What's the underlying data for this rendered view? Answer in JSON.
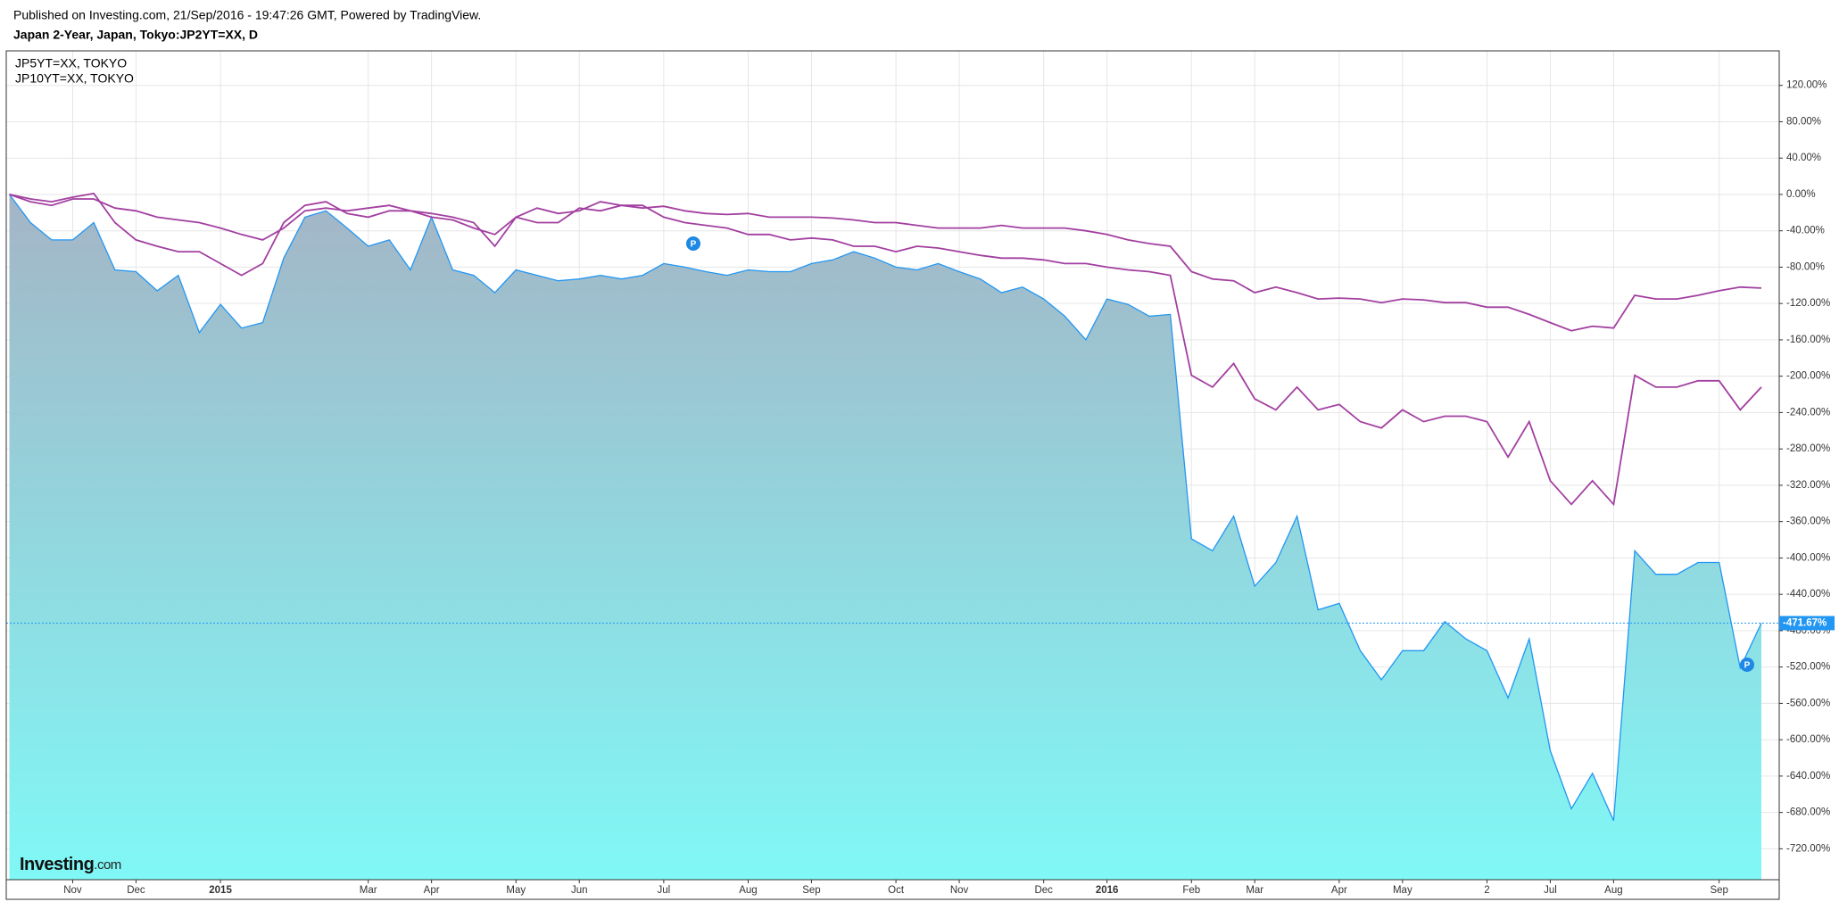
{
  "chart_data": {
    "type": "line",
    "title": "Published on Investing.com, 21/Sep/2016 - 19:47:26 GMT, Powered by TradingView.",
    "subtitle": "Japan 2-Year, Japan, Tokyo:JP2YT=XX, D",
    "categories": [
      null,
      null,
      null,
      "Nov",
      null,
      null,
      "Dec",
      null,
      null,
      null,
      "2015",
      null,
      null,
      null,
      null,
      null,
      null,
      "Mar",
      null,
      null,
      "Apr",
      null,
      null,
      null,
      "May",
      null,
      null,
      "Jun",
      null,
      null,
      null,
      "Jul",
      null,
      null,
      null,
      "Aug",
      null,
      null,
      "Sep",
      null,
      null,
      null,
      "Oct",
      null,
      null,
      "Nov",
      null,
      null,
      null,
      "Dec",
      null,
      null,
      "2016",
      null,
      null,
      null,
      "Feb",
      null,
      null,
      "Mar",
      null,
      null,
      null,
      "Apr",
      null,
      null,
      "May",
      null,
      null,
      null,
      "2",
      null,
      null,
      "Jul",
      null,
      null,
      "Aug",
      null,
      null,
      null,
      null,
      "Sep",
      null,
      null
    ],
    "series": [
      {
        "color": "#2196f3",
        "area": true,
        "values": [
          0,
          -31,
          -50,
          -50,
          -31,
          -83,
          -85,
          -106,
          -89,
          -152,
          -121,
          -147,
          -141,
          -70,
          -25,
          -18,
          -37,
          -57,
          -50,
          -83,
          -25,
          -83,
          -89,
          -108,
          -83,
          -89,
          -95,
          -93,
          -89,
          -93,
          -89,
          -76,
          -80,
          -85,
          -89,
          -83,
          -85,
          -85,
          -76,
          -72,
          -63,
          -70,
          -80,
          -83,
          -76,
          -85,
          -93,
          -108,
          -102,
          -115,
          -134,
          -160,
          -115,
          -121,
          -134,
          -132,
          -379,
          -392,
          -354,
          -431,
          -405,
          -354,
          -457,
          -450,
          -502,
          -534,
          -502,
          -502,
          -470,
          -489,
          -502,
          -554,
          -489,
          -612,
          -676,
          -637,
          -689,
          -392,
          -418,
          -418,
          -405,
          -405,
          -521,
          -471.67
        ]
      },
      {
        "name": "JP5YT=XX, TOKYO",
        "color": "#a23fa0",
        "values": [
          0,
          -5,
          -8,
          -3,
          1,
          -31,
          -50,
          -57,
          -63,
          -63,
          -76,
          -89,
          -76,
          -31,
          -12,
          -8,
          -21,
          -25,
          -18,
          -18,
          -21,
          -25,
          -31,
          -57,
          -25,
          -31,
          -31,
          -15,
          -18,
          -12,
          -12,
          -25,
          -31,
          -34,
          -37,
          -44,
          -44,
          -50,
          -48,
          -50,
          -57,
          -57,
          -63,
          -57,
          -59,
          -63,
          -67,
          -70,
          -70,
          -72,
          -76,
          -76,
          -80,
          -83,
          -85,
          -89,
          -199,
          -212,
          -186,
          -225,
          -237,
          -212,
          -237,
          -231,
          -250,
          -257,
          -237,
          -250,
          -244,
          -244,
          -250,
          -289,
          -250,
          -315,
          -341,
          -315,
          -341,
          -199,
          -212,
          -212,
          -205,
          -205,
          -237,
          -212
        ]
      },
      {
        "name": "JP10YT=XX, TOKYO",
        "color": "#a23fa0",
        "values": [
          0,
          -8,
          -12,
          -5,
          -5,
          -15,
          -18,
          -25,
          -28,
          -31,
          -37,
          -44,
          -50,
          -37,
          -18,
          -15,
          -18,
          -15,
          -12,
          -18,
          -25,
          -28,
          -37,
          -44,
          -25,
          -15,
          -21,
          -18,
          -8,
          -12,
          -15,
          -13,
          -18,
          -21,
          -22,
          -21,
          -25,
          -25,
          -25,
          -26,
          -28,
          -31,
          -31,
          -34,
          -37,
          -37,
          -37,
          -34,
          -37,
          -37,
          -37,
          -40,
          -44,
          -50,
          -54,
          -57,
          -85,
          -93,
          -95,
          -108,
          -102,
          -108,
          -115,
          -114,
          -115,
          -119,
          -115,
          -116,
          -119,
          -119,
          -124,
          -124,
          -132,
          -141,
          -150,
          -145,
          -147,
          -111,
          -115,
          -115,
          -111,
          -106,
          -102,
          -103
        ]
      }
    ],
    "ylim": [
      -754,
      158
    ],
    "yticks": [
      {
        "value": 120,
        "label": "120.00%"
      },
      {
        "value": 80,
        "label": "80.00%"
      },
      {
        "value": 40,
        "label": "40.00%"
      },
      {
        "value": 0,
        "label": "0.00%"
      },
      {
        "value": -40,
        "label": "-40.00%"
      },
      {
        "value": -80,
        "label": "-80.00%"
      },
      {
        "value": -120,
        "label": "-120.00%"
      },
      {
        "value": -160,
        "label": "-160.00%"
      },
      {
        "value": -200,
        "label": "-200.00%"
      },
      {
        "value": -240,
        "label": "-240.00%"
      },
      {
        "value": -280,
        "label": "-280.00%"
      },
      {
        "value": -320,
        "label": "-320.00%"
      },
      {
        "value": -360,
        "label": "-360.00%"
      },
      {
        "value": -400,
        "label": "-400.00%"
      },
      {
        "value": -440,
        "label": "-440.00%"
      },
      {
        "value": -480,
        "label": "-480.00%"
      },
      {
        "value": -520,
        "label": "-520.00%"
      },
      {
        "value": -560,
        "label": "-560.00%"
      },
      {
        "value": -600,
        "label": "-600.00%"
      },
      {
        "value": -640,
        "label": "-640.00%"
      },
      {
        "value": -680,
        "label": "-680.00%"
      },
      {
        "value": -720,
        "label": "-720.00%"
      }
    ],
    "current_value": {
      "value": -471.67,
      "label": "-471.67%"
    },
    "markers": [
      "P",
      "P"
    ],
    "logo": {
      "name": "Investing",
      "suffix": ".com"
    },
    "grid": true
  }
}
